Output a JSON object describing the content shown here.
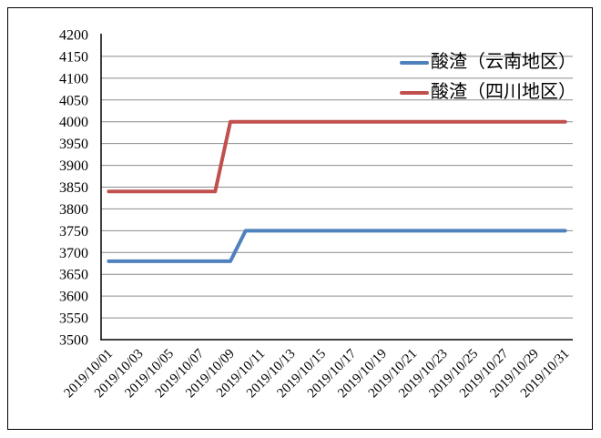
{
  "chart_data": {
    "type": "line",
    "title": "",
    "xlabel": "",
    "ylabel": "",
    "categories": [
      "2019/10/01",
      "2019/10/02",
      "2019/10/03",
      "2019/10/04",
      "2019/10/05",
      "2019/10/06",
      "2019/10/07",
      "2019/10/08",
      "2019/10/09",
      "2019/10/10",
      "2019/10/11",
      "2019/10/12",
      "2019/10/13",
      "2019/10/14",
      "2019/10/15",
      "2019/10/16",
      "2019/10/17",
      "2019/10/18",
      "2019/10/19",
      "2019/10/20",
      "2019/10/21",
      "2019/10/22",
      "2019/10/23",
      "2019/10/24",
      "2019/10/25",
      "2019/10/26",
      "2019/10/27",
      "2019/10/28",
      "2019/10/29",
      "2019/10/30",
      "2019/10/31"
    ],
    "x_label_interval": 2,
    "series": [
      {
        "name": "酸渣（云南地区）",
        "color": "#4F81BD",
        "values": [
          3680,
          3680,
          3680,
          3680,
          3680,
          3680,
          3680,
          3680,
          3680,
          3750,
          3750,
          3750,
          3750,
          3750,
          3750,
          3750,
          3750,
          3750,
          3750,
          3750,
          3750,
          3750,
          3750,
          3750,
          3750,
          3750,
          3750,
          3750,
          3750,
          3750,
          3750
        ]
      },
      {
        "name": "酸渣（四川地区）",
        "color": "#C0504D",
        "values": [
          3840,
          3840,
          3840,
          3840,
          3840,
          3840,
          3840,
          3840,
          4000,
          4000,
          4000,
          4000,
          4000,
          4000,
          4000,
          4000,
          4000,
          4000,
          4000,
          4000,
          4000,
          4000,
          4000,
          4000,
          4000,
          4000,
          4000,
          4000,
          4000,
          4000,
          4000
        ]
      }
    ],
    "ylim": [
      3500,
      4200
    ],
    "ytick_step": 50,
    "grid": true,
    "legend_position": "top-right",
    "axis_color": "#000000",
    "gridline_color": "#8C8C8C",
    "text_color": "#000000"
  }
}
